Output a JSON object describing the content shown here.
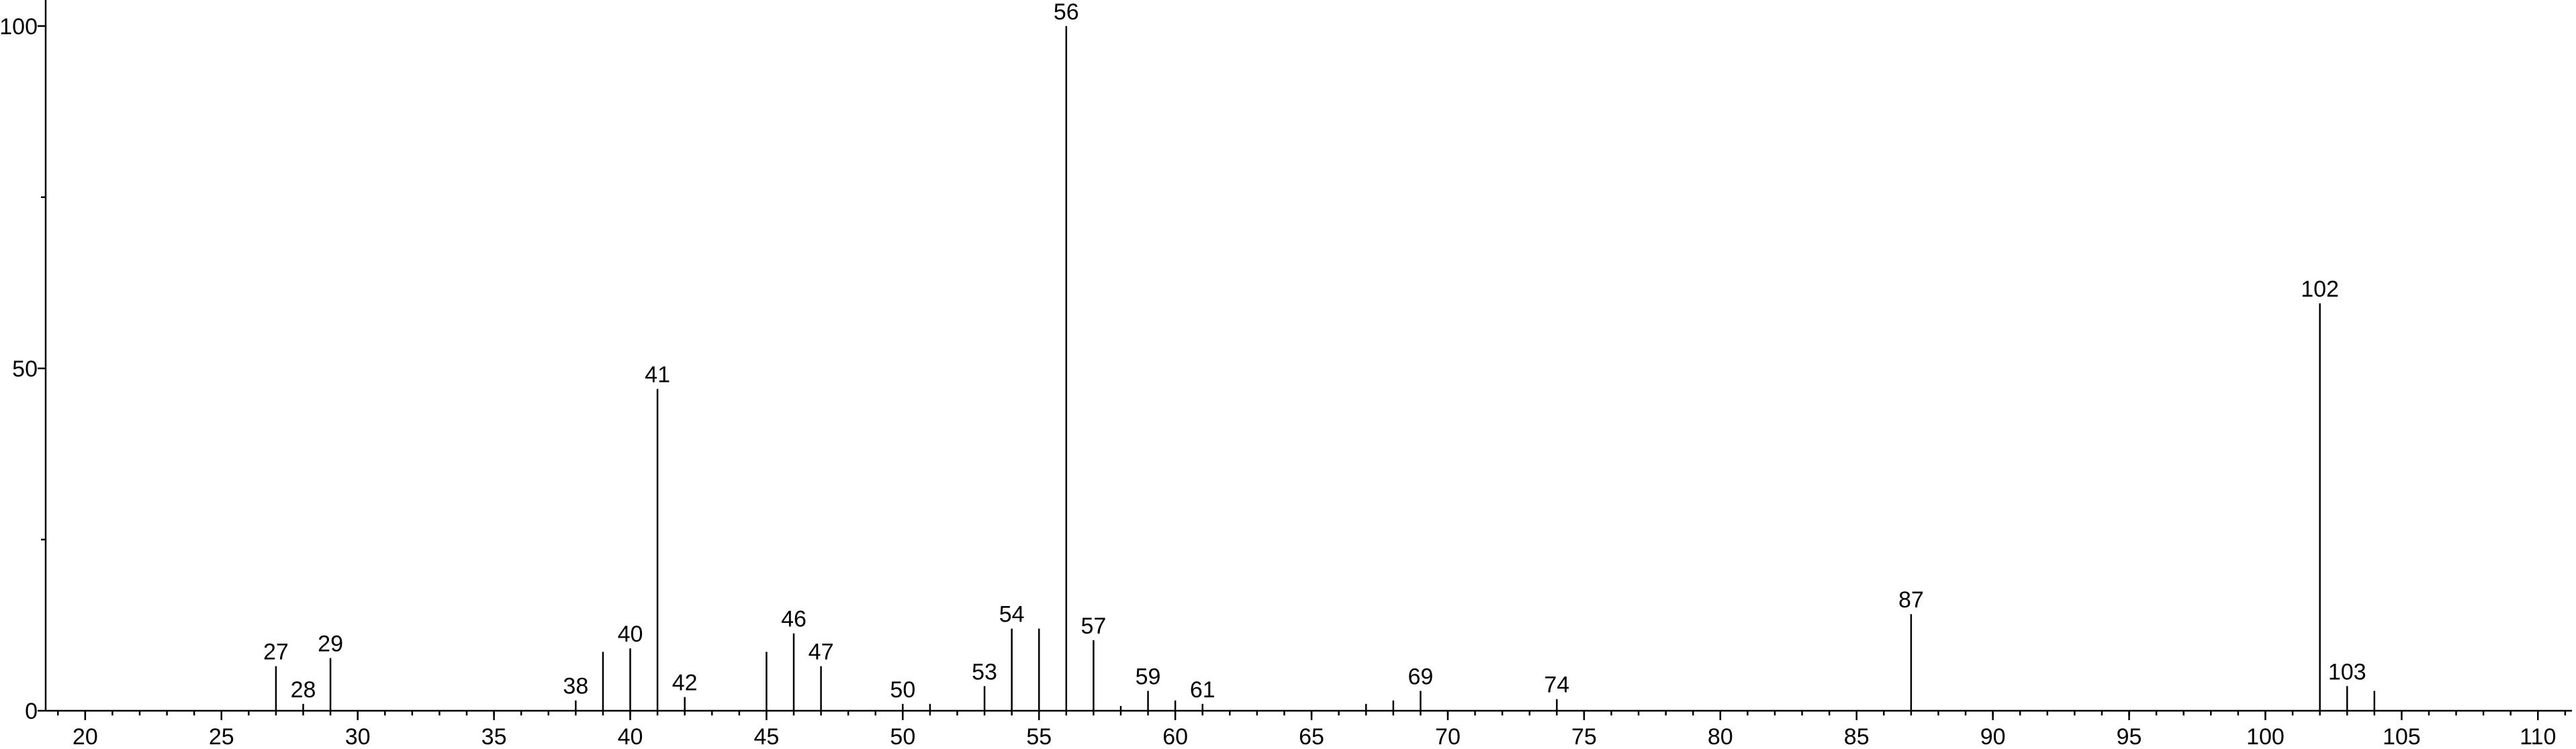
{
  "chart_data": {
    "type": "stem",
    "x": [
      27,
      28,
      29,
      38,
      39,
      40,
      41,
      42,
      45,
      46,
      47,
      50,
      51,
      53,
      54,
      55,
      56,
      57,
      58,
      59,
      60,
      61,
      67,
      68,
      69,
      74,
      87,
      102,
      103,
      104
    ],
    "values": [
      6.5,
      1.0,
      7.7,
      1.5,
      8.6,
      9.1,
      47,
      2.0,
      8.6,
      11.3,
      6.5,
      1.0,
      1.0,
      3.6,
      12,
      12,
      100,
      10.3,
      0.7,
      2.9,
      1.5,
      1.0,
      1.0,
      1.5,
      2.9,
      1.7,
      14.1,
      59.5,
      3.6,
      2.9
    ],
    "labeled": [
      true,
      true,
      true,
      true,
      false,
      true,
      true,
      true,
      false,
      true,
      true,
      true,
      false,
      true,
      true,
      false,
      true,
      true,
      false,
      true,
      false,
      true,
      false,
      false,
      true,
      true,
      true,
      true,
      true,
      false
    ],
    "color": "#000000",
    "xlim": [
      18.55,
      111.25
    ],
    "xticks": [
      20,
      25,
      30,
      35,
      40,
      45,
      50,
      55,
      60,
      65,
      70,
      75,
      80,
      85,
      90,
      95,
      100,
      105,
      110
    ],
    "xminor_step": 1,
    "ylim": [
      0,
      103.8
    ],
    "yticks": [
      0,
      50,
      100
    ],
    "yminor_ticks": [
      25,
      75
    ]
  }
}
